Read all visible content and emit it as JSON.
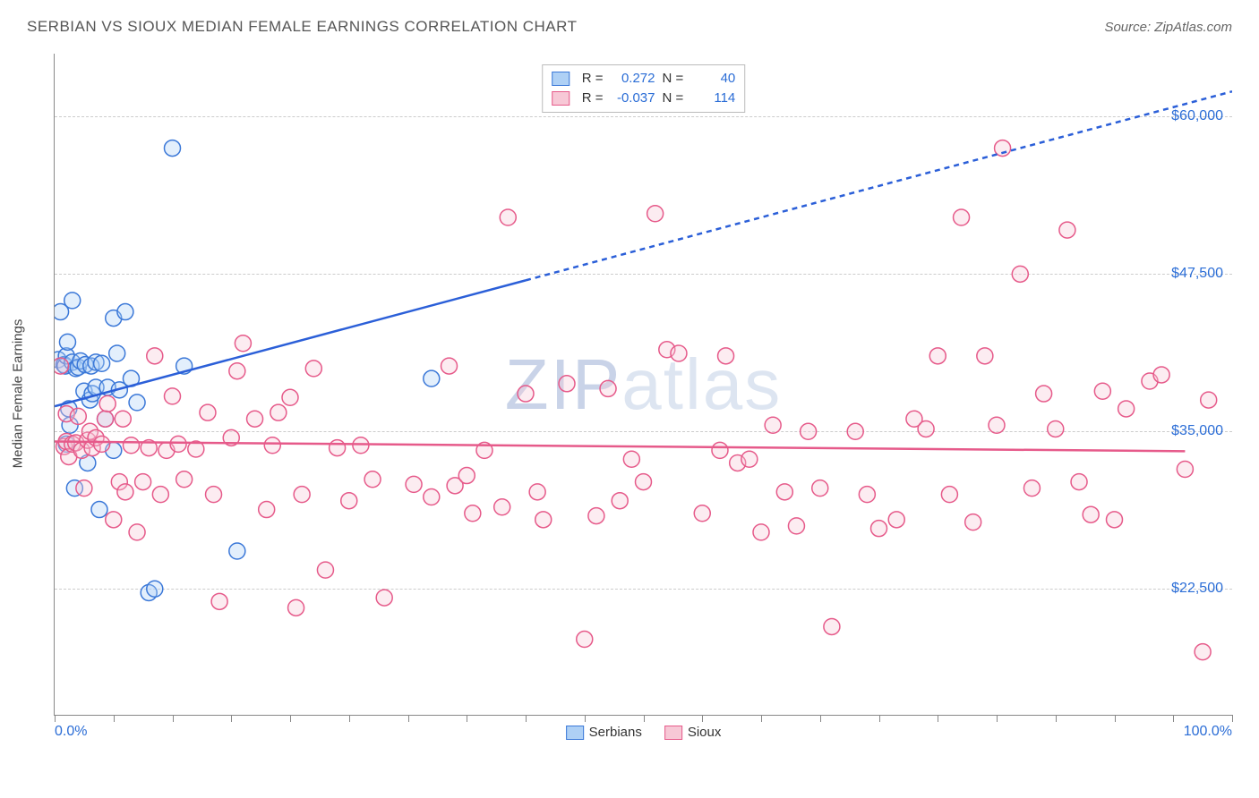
{
  "header": {
    "title": "SERBIAN VS SIOUX MEDIAN FEMALE EARNINGS CORRELATION CHART",
    "source": "Source: ZipAtlas.com"
  },
  "y_axis": {
    "label": "Median Female Earnings",
    "label_color": "#444444",
    "label_fontsize": 15,
    "min": 12500,
    "max": 65000,
    "gridlines": [
      22500,
      35000,
      47500,
      60000
    ],
    "tick_format": "currency",
    "tick_labels": [
      "$22,500",
      "$35,000",
      "$47,500",
      "$60,000"
    ],
    "tick_color": "#2b6dd6",
    "tick_fontsize": 16,
    "grid_color": "#cccccc"
  },
  "x_axis": {
    "min": 0,
    "max": 100,
    "left_label": "0.0%",
    "right_label": "100.0%",
    "label_color": "#2b6dd6",
    "label_fontsize": 16,
    "ticks_pct": [
      0,
      5,
      10,
      15,
      20,
      25,
      30,
      35,
      40,
      45,
      50,
      55,
      60,
      65,
      70,
      75,
      80,
      85,
      90,
      95,
      100
    ]
  },
  "top_legend": {
    "rows": [
      {
        "swatch_fill": "#aed0f5",
        "swatch_border": "#3b78d8",
        "r_label": "R =",
        "r_value": "0.272",
        "n_label": "N =",
        "n_value": "40"
      },
      {
        "swatch_fill": "#f7c8d6",
        "swatch_border": "#e65a8a",
        "r_label": "R =",
        "r_value": "-0.037",
        "n_label": "N =",
        "n_value": "114"
      }
    ]
  },
  "bottom_legend": {
    "items": [
      {
        "swatch_fill": "#aed0f5",
        "swatch_border": "#3b78d8",
        "label": "Serbians"
      },
      {
        "swatch_fill": "#f7c8d6",
        "swatch_border": "#e65a8a",
        "label": "Sioux"
      }
    ]
  },
  "watermark": {
    "text_bold": "ZIP",
    "text_light": "atlas"
  },
  "chart": {
    "type": "scatter",
    "background_color": "#ffffff",
    "border_color": "#888888",
    "marker_radius": 9,
    "marker_fill_opacity": 0.35,
    "marker_stroke_width": 1.5,
    "series": [
      {
        "name": "Serbians",
        "marker_fill": "#aed0f5",
        "marker_stroke": "#3b78d8",
        "trendline": {
          "color": "#2b5fd8",
          "width": 2.5,
          "solid_from_x": 0,
          "solid_to_x": 40,
          "dash_to_x": 100,
          "y_at_x0": 37000,
          "y_at_x100": 62000,
          "dash_pattern": "6 5"
        },
        "points": [
          {
            "x": 0.3,
            "y": 40700
          },
          {
            "x": 0.5,
            "y": 44500
          },
          {
            "x": 0.8,
            "y": 40300
          },
          {
            "x": 0.9,
            "y": 40200
          },
          {
            "x": 1.0,
            "y": 41000
          },
          {
            "x": 1.1,
            "y": 42100
          },
          {
            "x": 1.0,
            "y": 34000
          },
          {
            "x": 1.2,
            "y": 36800
          },
          {
            "x": 1.3,
            "y": 35500
          },
          {
            "x": 1.5,
            "y": 40500
          },
          {
            "x": 1.5,
            "y": 45400
          },
          {
            "x": 1.8,
            "y": 40000
          },
          {
            "x": 2.0,
            "y": 40100
          },
          {
            "x": 1.7,
            "y": 30500
          },
          {
            "x": 2.2,
            "y": 40600
          },
          {
            "x": 2.5,
            "y": 38200
          },
          {
            "x": 2.6,
            "y": 40300
          },
          {
            "x": 2.8,
            "y": 32500
          },
          {
            "x": 3.0,
            "y": 37500
          },
          {
            "x": 3.1,
            "y": 40200
          },
          {
            "x": 3.2,
            "y": 38000
          },
          {
            "x": 3.5,
            "y": 40500
          },
          {
            "x": 3.5,
            "y": 38500
          },
          {
            "x": 3.8,
            "y": 28800
          },
          {
            "x": 4.0,
            "y": 40400
          },
          {
            "x": 4.3,
            "y": 36000
          },
          {
            "x": 4.5,
            "y": 38500
          },
          {
            "x": 5.0,
            "y": 44000
          },
          {
            "x": 5.0,
            "y": 33500
          },
          {
            "x": 5.3,
            "y": 41200
          },
          {
            "x": 5.5,
            "y": 38300
          },
          {
            "x": 6.0,
            "y": 44500
          },
          {
            "x": 6.5,
            "y": 39200
          },
          {
            "x": 7.0,
            "y": 37300
          },
          {
            "x": 8.0,
            "y": 22200
          },
          {
            "x": 8.5,
            "y": 22500
          },
          {
            "x": 10.0,
            "y": 57500
          },
          {
            "x": 11.0,
            "y": 40200
          },
          {
            "x": 15.5,
            "y": 25500
          },
          {
            "x": 32.0,
            "y": 39200
          }
        ]
      },
      {
        "name": "Sioux",
        "marker_fill": "#f7c8d6",
        "marker_stroke": "#e65a8a",
        "trendline": {
          "color": "#e65a8a",
          "width": 2.5,
          "solid_from_x": 0,
          "solid_to_x": 96,
          "dash_to_x": 96,
          "y_at_x0": 34200,
          "y_at_x100": 33400,
          "dash_pattern": "none"
        },
        "points": [
          {
            "x": 0.5,
            "y": 40200
          },
          {
            "x": 0.8,
            "y": 33800
          },
          {
            "x": 1.0,
            "y": 34200
          },
          {
            "x": 1.0,
            "y": 36400
          },
          {
            "x": 1.2,
            "y": 33000
          },
          {
            "x": 1.5,
            "y": 34000
          },
          {
            "x": 1.8,
            "y": 34100
          },
          {
            "x": 2.0,
            "y": 36200
          },
          {
            "x": 2.3,
            "y": 33500
          },
          {
            "x": 2.5,
            "y": 30500
          },
          {
            "x": 2.8,
            "y": 34300
          },
          {
            "x": 3.0,
            "y": 35000
          },
          {
            "x": 3.2,
            "y": 33700
          },
          {
            "x": 3.5,
            "y": 34500
          },
          {
            "x": 4.0,
            "y": 34000
          },
          {
            "x": 4.3,
            "y": 36000
          },
          {
            "x": 4.5,
            "y": 37200
          },
          {
            "x": 5.0,
            "y": 28000
          },
          {
            "x": 5.5,
            "y": 31000
          },
          {
            "x": 5.8,
            "y": 36000
          },
          {
            "x": 6.0,
            "y": 30200
          },
          {
            "x": 6.5,
            "y": 33900
          },
          {
            "x": 7.0,
            "y": 27000
          },
          {
            "x": 7.5,
            "y": 31000
          },
          {
            "x": 8.0,
            "y": 33700
          },
          {
            "x": 8.5,
            "y": 41000
          },
          {
            "x": 9.0,
            "y": 30000
          },
          {
            "x": 9.5,
            "y": 33500
          },
          {
            "x": 10.0,
            "y": 37800
          },
          {
            "x": 10.5,
            "y": 34000
          },
          {
            "x": 11.0,
            "y": 31200
          },
          {
            "x": 12.0,
            "y": 33600
          },
          {
            "x": 13.0,
            "y": 36500
          },
          {
            "x": 13.5,
            "y": 30000
          },
          {
            "x": 14.0,
            "y": 21500
          },
          {
            "x": 15.0,
            "y": 34500
          },
          {
            "x": 15.5,
            "y": 39800
          },
          {
            "x": 16.0,
            "y": 42000
          },
          {
            "x": 17.0,
            "y": 36000
          },
          {
            "x": 18.0,
            "y": 28800
          },
          {
            "x": 18.5,
            "y": 33900
          },
          {
            "x": 19.0,
            "y": 36500
          },
          {
            "x": 20.0,
            "y": 37700
          },
          {
            "x": 20.5,
            "y": 21000
          },
          {
            "x": 21.0,
            "y": 30000
          },
          {
            "x": 22.0,
            "y": 40000
          },
          {
            "x": 23.0,
            "y": 24000
          },
          {
            "x": 24.0,
            "y": 33700
          },
          {
            "x": 25.0,
            "y": 29500
          },
          {
            "x": 26.0,
            "y": 33900
          },
          {
            "x": 27.0,
            "y": 31200
          },
          {
            "x": 28.0,
            "y": 21800
          },
          {
            "x": 30.5,
            "y": 30800
          },
          {
            "x": 32.0,
            "y": 29800
          },
          {
            "x": 33.5,
            "y": 40200
          },
          {
            "x": 34.0,
            "y": 30700
          },
          {
            "x": 35.0,
            "y": 31500
          },
          {
            "x": 35.5,
            "y": 28500
          },
          {
            "x": 36.5,
            "y": 33500
          },
          {
            "x": 38.0,
            "y": 29000
          },
          {
            "x": 38.5,
            "y": 52000
          },
          {
            "x": 40.0,
            "y": 38000
          },
          {
            "x": 41.0,
            "y": 30200
          },
          {
            "x": 41.5,
            "y": 28000
          },
          {
            "x": 43.5,
            "y": 38800
          },
          {
            "x": 45.0,
            "y": 18500
          },
          {
            "x": 46.0,
            "y": 28300
          },
          {
            "x": 47.0,
            "y": 38400
          },
          {
            "x": 48.0,
            "y": 29500
          },
          {
            "x": 49.0,
            "y": 32800
          },
          {
            "x": 50.0,
            "y": 31000
          },
          {
            "x": 51.0,
            "y": 52300
          },
          {
            "x": 52.0,
            "y": 41500
          },
          {
            "x": 53.0,
            "y": 41200
          },
          {
            "x": 55.0,
            "y": 28500
          },
          {
            "x": 56.5,
            "y": 33500
          },
          {
            "x": 57.0,
            "y": 41000
          },
          {
            "x": 58.0,
            "y": 32500
          },
          {
            "x": 59.0,
            "y": 32800
          },
          {
            "x": 60.0,
            "y": 27000
          },
          {
            "x": 61.0,
            "y": 35500
          },
          {
            "x": 62.0,
            "y": 30200
          },
          {
            "x": 63.0,
            "y": 27500
          },
          {
            "x": 64.0,
            "y": 35000
          },
          {
            "x": 65.0,
            "y": 30500
          },
          {
            "x": 66.0,
            "y": 19500
          },
          {
            "x": 68.0,
            "y": 35000
          },
          {
            "x": 69.0,
            "y": 30000
          },
          {
            "x": 70.0,
            "y": 27300
          },
          {
            "x": 71.5,
            "y": 28000
          },
          {
            "x": 73.0,
            "y": 36000
          },
          {
            "x": 74.0,
            "y": 35200
          },
          {
            "x": 75.0,
            "y": 41000
          },
          {
            "x": 76.0,
            "y": 30000
          },
          {
            "x": 77.0,
            "y": 52000
          },
          {
            "x": 78.0,
            "y": 27800
          },
          {
            "x": 79.0,
            "y": 41000
          },
          {
            "x": 80.0,
            "y": 35500
          },
          {
            "x": 80.5,
            "y": 57500
          },
          {
            "x": 82.0,
            "y": 47500
          },
          {
            "x": 83.0,
            "y": 30500
          },
          {
            "x": 84.0,
            "y": 38000
          },
          {
            "x": 85.0,
            "y": 35200
          },
          {
            "x": 86.0,
            "y": 51000
          },
          {
            "x": 87.0,
            "y": 31000
          },
          {
            "x": 88.0,
            "y": 28400
          },
          {
            "x": 89.0,
            "y": 38200
          },
          {
            "x": 90.0,
            "y": 28000
          },
          {
            "x": 91.0,
            "y": 36800
          },
          {
            "x": 93.0,
            "y": 39000
          },
          {
            "x": 94.0,
            "y": 39500
          },
          {
            "x": 96.0,
            "y": 32000
          },
          {
            "x": 97.5,
            "y": 17500
          },
          {
            "x": 98.0,
            "y": 37500
          }
        ]
      }
    ]
  }
}
